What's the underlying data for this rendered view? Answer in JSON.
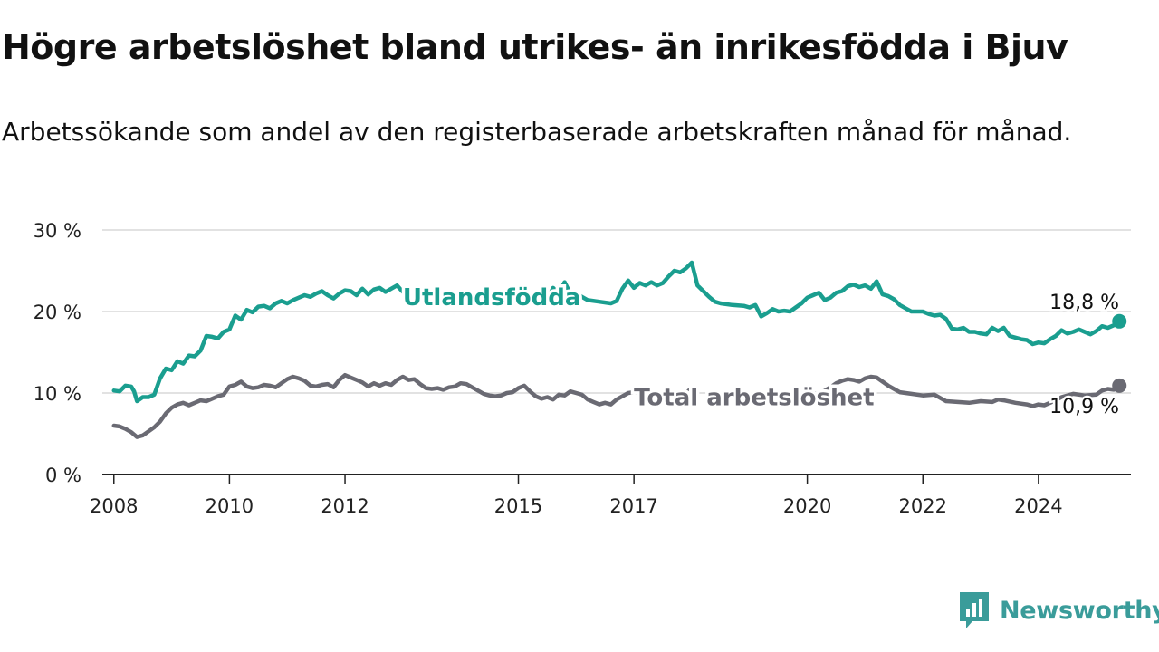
{
  "header": {
    "title": "Högre arbetslöshet bland utrikes- än inrikesfödda i Bjuv",
    "subtitle": "Arbetssökande som andel av den registerbaserade arbetskraften månad för månad."
  },
  "brand": {
    "label": "Newsworthy",
    "icon": "newsworthy-logo-icon",
    "color": "#3a9c9a"
  },
  "chart_data": {
    "type": "line",
    "title": "Högre arbetslöshet bland utrikes- än inrikesfödda i Bjuv",
    "subtitle": "Arbetssökande som andel av den registerbaserade arbetskraften månad för månad.",
    "xlabel": "",
    "ylabel": "",
    "xlim": [
      2007.8,
      2025.6
    ],
    "ylim": [
      0,
      30
    ],
    "x_ticks": [
      2008,
      2010,
      2012,
      2015,
      2017,
      2020,
      2022,
      2024
    ],
    "x_tick_labels": [
      "2008",
      "2010",
      "2012",
      "2015",
      "2017",
      "2020",
      "2022",
      "2024"
    ],
    "y_ticks": [
      0,
      10,
      20,
      30
    ],
    "y_tick_labels": [
      "0 %",
      "10 %",
      "20 %",
      "30 %"
    ],
    "grid": true,
    "legend": "inline labels",
    "series": [
      {
        "name": "Utlandsfödda",
        "color": "#1a9e8f",
        "end_label": "18,8 %",
        "points": [
          [
            2008.0,
            10.3
          ],
          [
            2008.1,
            10.2
          ],
          [
            2008.2,
            10.9
          ],
          [
            2008.3,
            10.8
          ],
          [
            2008.35,
            10.2
          ],
          [
            2008.4,
            9.0
          ],
          [
            2008.5,
            9.5
          ],
          [
            2008.6,
            9.5
          ],
          [
            2008.7,
            9.8
          ],
          [
            2008.8,
            11.8
          ],
          [
            2008.9,
            13.0
          ],
          [
            2009.0,
            12.8
          ],
          [
            2009.1,
            13.9
          ],
          [
            2009.2,
            13.6
          ],
          [
            2009.3,
            14.6
          ],
          [
            2009.4,
            14.5
          ],
          [
            2009.5,
            15.2
          ],
          [
            2009.6,
            17.0
          ],
          [
            2009.7,
            16.9
          ],
          [
            2009.8,
            16.7
          ],
          [
            2009.9,
            17.5
          ],
          [
            2010.0,
            17.8
          ],
          [
            2010.1,
            19.5
          ],
          [
            2010.2,
            19.0
          ],
          [
            2010.3,
            20.2
          ],
          [
            2010.4,
            19.9
          ],
          [
            2010.5,
            20.6
          ],
          [
            2010.6,
            20.7
          ],
          [
            2010.7,
            20.4
          ],
          [
            2010.8,
            21.0
          ],
          [
            2010.9,
            21.3
          ],
          [
            2011.0,
            21.0
          ],
          [
            2011.1,
            21.4
          ],
          [
            2011.2,
            21.7
          ],
          [
            2011.3,
            22.0
          ],
          [
            2011.4,
            21.8
          ],
          [
            2011.5,
            22.2
          ],
          [
            2011.6,
            22.5
          ],
          [
            2011.7,
            22.0
          ],
          [
            2011.8,
            21.6
          ],
          [
            2011.9,
            22.2
          ],
          [
            2012.0,
            22.6
          ],
          [
            2012.1,
            22.5
          ],
          [
            2012.2,
            22.0
          ],
          [
            2012.3,
            22.8
          ],
          [
            2012.4,
            22.1
          ],
          [
            2012.5,
            22.7
          ],
          [
            2012.6,
            22.9
          ],
          [
            2012.7,
            22.4
          ],
          [
            2012.8,
            22.8
          ],
          [
            2012.9,
            23.2
          ],
          [
            2013.0,
            22.4
          ],
          [
            2014.9,
            22.8
          ],
          [
            2015.0,
            22.3
          ],
          [
            2015.1,
            21.7
          ],
          [
            2015.2,
            21.2
          ],
          [
            2015.3,
            21.0
          ],
          [
            2015.4,
            21.2
          ],
          [
            2015.5,
            21.4
          ],
          [
            2015.6,
            22.9
          ],
          [
            2015.7,
            22.3
          ],
          [
            2015.8,
            23.6
          ],
          [
            2015.9,
            22.2
          ],
          [
            2016.0,
            22.2
          ],
          [
            2016.2,
            21.4
          ],
          [
            2016.4,
            21.2
          ],
          [
            2016.6,
            21.0
          ],
          [
            2016.7,
            21.3
          ],
          [
            2016.8,
            22.8
          ],
          [
            2016.9,
            23.8
          ],
          [
            2017.0,
            22.9
          ],
          [
            2017.1,
            23.5
          ],
          [
            2017.2,
            23.2
          ],
          [
            2017.3,
            23.6
          ],
          [
            2017.4,
            23.2
          ],
          [
            2017.5,
            23.5
          ],
          [
            2017.6,
            24.3
          ],
          [
            2017.7,
            25.0
          ],
          [
            2017.8,
            24.8
          ],
          [
            2017.9,
            25.3
          ],
          [
            2018.0,
            26.0
          ],
          [
            2018.1,
            23.2
          ],
          [
            2018.2,
            22.5
          ],
          [
            2018.3,
            21.8
          ],
          [
            2018.4,
            21.2
          ],
          [
            2018.5,
            21.0
          ],
          [
            2018.7,
            20.8
          ],
          [
            2018.9,
            20.7
          ],
          [
            2019.0,
            20.5
          ],
          [
            2019.1,
            20.8
          ],
          [
            2019.2,
            19.4
          ],
          [
            2019.3,
            19.8
          ],
          [
            2019.4,
            20.3
          ],
          [
            2019.5,
            20.0
          ],
          [
            2019.6,
            20.1
          ],
          [
            2019.7,
            20.0
          ],
          [
            2019.8,
            20.5
          ],
          [
            2019.9,
            21.0
          ],
          [
            2020.0,
            21.7
          ],
          [
            2020.1,
            22.0
          ],
          [
            2020.2,
            22.3
          ],
          [
            2020.3,
            21.4
          ],
          [
            2020.4,
            21.7
          ],
          [
            2020.5,
            22.3
          ],
          [
            2020.6,
            22.5
          ],
          [
            2020.7,
            23.1
          ],
          [
            2020.8,
            23.3
          ],
          [
            2020.9,
            23.0
          ],
          [
            2021.0,
            23.2
          ],
          [
            2021.1,
            22.8
          ],
          [
            2021.2,
            23.7
          ],
          [
            2021.3,
            22.1
          ],
          [
            2021.4,
            21.9
          ],
          [
            2021.5,
            21.5
          ],
          [
            2021.6,
            20.8
          ],
          [
            2021.7,
            20.4
          ],
          [
            2021.8,
            20.0
          ],
          [
            2022.0,
            20.0
          ],
          [
            2022.1,
            19.7
          ],
          [
            2022.2,
            19.5
          ],
          [
            2022.3,
            19.6
          ],
          [
            2022.4,
            19.1
          ],
          [
            2022.5,
            17.9
          ],
          [
            2022.6,
            17.8
          ],
          [
            2022.7,
            18.0
          ],
          [
            2022.8,
            17.5
          ],
          [
            2022.9,
            17.5
          ],
          [
            2023.0,
            17.3
          ],
          [
            2023.1,
            17.2
          ],
          [
            2023.2,
            18.0
          ],
          [
            2023.3,
            17.6
          ],
          [
            2023.4,
            18.0
          ],
          [
            2023.5,
            17.0
          ],
          [
            2023.6,
            16.8
          ],
          [
            2023.7,
            16.6
          ],
          [
            2023.8,
            16.5
          ],
          [
            2023.9,
            16.0
          ],
          [
            2024.0,
            16.2
          ],
          [
            2024.1,
            16.1
          ],
          [
            2024.2,
            16.6
          ],
          [
            2024.3,
            17.0
          ],
          [
            2024.4,
            17.7
          ],
          [
            2024.5,
            17.3
          ],
          [
            2024.6,
            17.5
          ],
          [
            2024.7,
            17.8
          ],
          [
            2024.8,
            17.5
          ],
          [
            2024.9,
            17.2
          ],
          [
            2025.0,
            17.6
          ],
          [
            2025.1,
            18.2
          ],
          [
            2025.2,
            18.0
          ],
          [
            2025.3,
            18.3
          ],
          [
            2025.4,
            18.8
          ]
        ]
      },
      {
        "name": "Total arbetslöshet",
        "color": "#6a6a73",
        "end_label": "10,9 %",
        "points": [
          [
            2008.0,
            6.0
          ],
          [
            2008.1,
            5.9
          ],
          [
            2008.2,
            5.6
          ],
          [
            2008.3,
            5.2
          ],
          [
            2008.4,
            4.6
          ],
          [
            2008.5,
            4.8
          ],
          [
            2008.6,
            5.3
          ],
          [
            2008.7,
            5.8
          ],
          [
            2008.8,
            6.5
          ],
          [
            2008.9,
            7.5
          ],
          [
            2009.0,
            8.2
          ],
          [
            2009.1,
            8.6
          ],
          [
            2009.2,
            8.8
          ],
          [
            2009.3,
            8.5
          ],
          [
            2009.4,
            8.8
          ],
          [
            2009.5,
            9.1
          ],
          [
            2009.6,
            9.0
          ],
          [
            2009.7,
            9.3
          ],
          [
            2009.8,
            9.6
          ],
          [
            2009.9,
            9.8
          ],
          [
            2010.0,
            10.8
          ],
          [
            2010.1,
            11.0
          ],
          [
            2010.2,
            11.4
          ],
          [
            2010.3,
            10.8
          ],
          [
            2010.4,
            10.6
          ],
          [
            2010.5,
            10.7
          ],
          [
            2010.6,
            11.0
          ],
          [
            2010.7,
            10.9
          ],
          [
            2010.8,
            10.7
          ],
          [
            2010.9,
            11.2
          ],
          [
            2011.0,
            11.7
          ],
          [
            2011.1,
            12.0
          ],
          [
            2011.2,
            11.8
          ],
          [
            2011.3,
            11.5
          ],
          [
            2011.4,
            10.9
          ],
          [
            2011.5,
            10.8
          ],
          [
            2011.6,
            11.0
          ],
          [
            2011.7,
            11.1
          ],
          [
            2011.8,
            10.7
          ],
          [
            2011.9,
            11.6
          ],
          [
            2012.0,
            12.2
          ],
          [
            2012.1,
            11.9
          ],
          [
            2012.2,
            11.6
          ],
          [
            2012.3,
            11.3
          ],
          [
            2012.4,
            10.8
          ],
          [
            2012.5,
            11.2
          ],
          [
            2012.6,
            10.9
          ],
          [
            2012.7,
            11.2
          ],
          [
            2012.8,
            11.0
          ],
          [
            2012.9,
            11.6
          ],
          [
            2013.0,
            12.0
          ],
          [
            2013.1,
            11.6
          ],
          [
            2013.2,
            11.7
          ],
          [
            2013.3,
            11.1
          ],
          [
            2013.4,
            10.6
          ],
          [
            2013.5,
            10.5
          ],
          [
            2013.6,
            10.6
          ],
          [
            2013.7,
            10.4
          ],
          [
            2013.8,
            10.7
          ],
          [
            2013.9,
            10.8
          ],
          [
            2014.0,
            11.2
          ],
          [
            2014.1,
            11.1
          ],
          [
            2014.2,
            10.7
          ],
          [
            2014.3,
            10.3
          ],
          [
            2014.4,
            9.9
          ],
          [
            2014.5,
            9.7
          ],
          [
            2014.6,
            9.6
          ],
          [
            2014.7,
            9.7
          ],
          [
            2014.8,
            10.0
          ],
          [
            2014.9,
            10.1
          ],
          [
            2015.0,
            10.6
          ],
          [
            2015.1,
            10.9
          ],
          [
            2015.2,
            10.2
          ],
          [
            2015.3,
            9.6
          ],
          [
            2015.4,
            9.3
          ],
          [
            2015.5,
            9.5
          ],
          [
            2015.6,
            9.2
          ],
          [
            2015.7,
            9.8
          ],
          [
            2015.8,
            9.7
          ],
          [
            2015.9,
            10.2
          ],
          [
            2016.0,
            10.0
          ],
          [
            2016.1,
            9.8
          ],
          [
            2016.2,
            9.2
          ],
          [
            2016.3,
            8.9
          ],
          [
            2016.4,
            8.6
          ],
          [
            2016.5,
            8.8
          ],
          [
            2016.6,
            8.6
          ],
          [
            2016.7,
            9.2
          ],
          [
            2016.8,
            9.6
          ],
          [
            2016.9,
            10.0
          ],
          [
            2017.0,
            10.1
          ],
          [
            2017.3,
            9.9
          ],
          [
            2017.5,
            9.9
          ],
          [
            2017.7,
            9.9
          ],
          [
            2017.8,
            10.2
          ],
          [
            2017.9,
            10.0
          ],
          [
            2018.0,
            10.6
          ],
          [
            2018.1,
            10.0
          ],
          [
            2019.9,
            10.0
          ],
          [
            2020.0,
            10.0
          ],
          [
            2020.2,
            9.9
          ],
          [
            2020.3,
            10.3
          ],
          [
            2020.4,
            10.7
          ],
          [
            2020.5,
            11.2
          ],
          [
            2020.6,
            11.5
          ],
          [
            2020.7,
            11.7
          ],
          [
            2020.8,
            11.6
          ],
          [
            2020.9,
            11.4
          ],
          [
            2021.0,
            11.8
          ],
          [
            2021.1,
            12.0
          ],
          [
            2021.2,
            11.9
          ],
          [
            2021.3,
            11.4
          ],
          [
            2021.4,
            10.9
          ],
          [
            2021.5,
            10.5
          ],
          [
            2021.6,
            10.1
          ],
          [
            2021.7,
            10.0
          ],
          [
            2021.8,
            9.9
          ],
          [
            2022.0,
            9.7
          ],
          [
            2022.2,
            9.8
          ],
          [
            2022.3,
            9.4
          ],
          [
            2022.4,
            9.0
          ],
          [
            2022.6,
            8.9
          ],
          [
            2022.8,
            8.8
          ],
          [
            2023.0,
            9.0
          ],
          [
            2023.2,
            8.9
          ],
          [
            2023.3,
            9.2
          ],
          [
            2023.4,
            9.1
          ],
          [
            2023.6,
            8.8
          ],
          [
            2023.8,
            8.6
          ],
          [
            2023.9,
            8.4
          ],
          [
            2024.0,
            8.6
          ],
          [
            2024.1,
            8.5
          ],
          [
            2024.2,
            8.8
          ],
          [
            2024.4,
            9.5
          ],
          [
            2024.6,
            9.9
          ],
          [
            2024.8,
            9.7
          ],
          [
            2025.0,
            9.8
          ],
          [
            2025.1,
            10.3
          ],
          [
            2025.2,
            10.5
          ],
          [
            2025.3,
            10.4
          ],
          [
            2025.4,
            10.9
          ]
        ]
      }
    ]
  }
}
